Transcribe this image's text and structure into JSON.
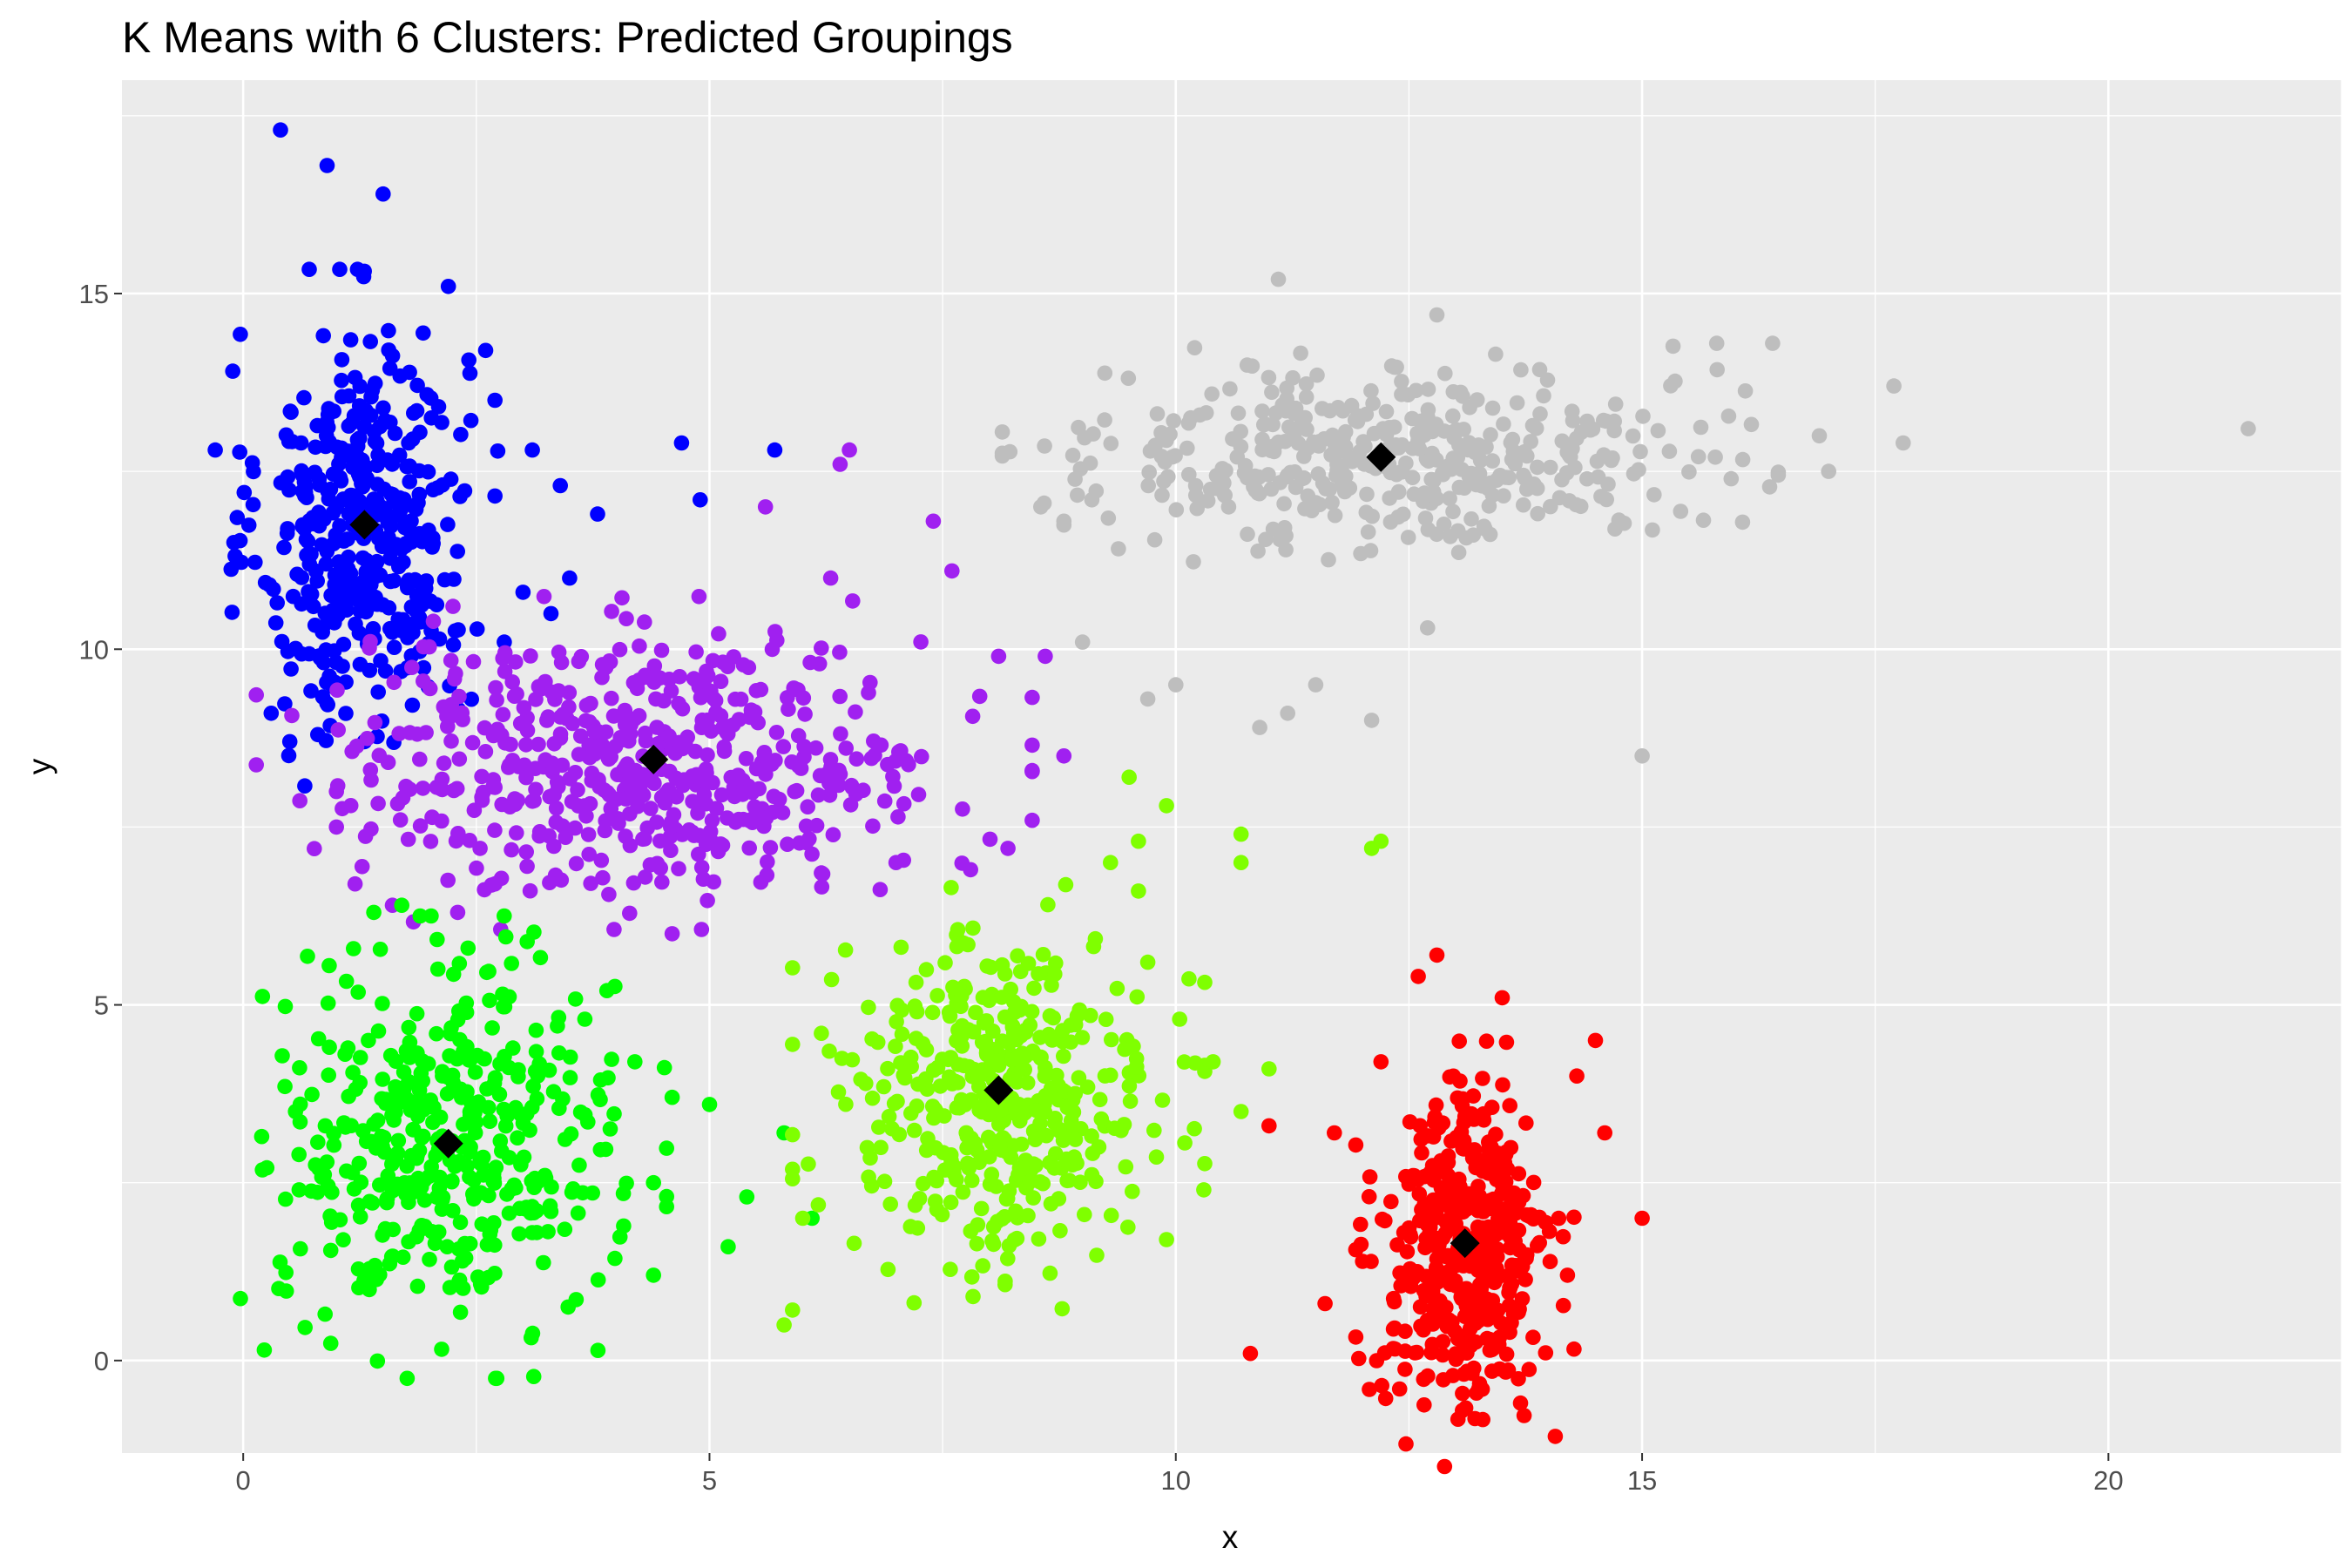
{
  "chart_data": {
    "type": "scatter",
    "title": "K Means with 6 Clusters: Predicted Groupings",
    "xlabel": "x",
    "ylabel": "y",
    "xlim": [
      -1.3,
      22.5
    ],
    "ylim": [
      -1.3,
      18.0
    ],
    "x_ticks": [
      0,
      5,
      10,
      15,
      20
    ],
    "y_ticks": [
      0,
      5,
      10,
      15
    ],
    "grid": true,
    "legend": "none",
    "panel_background": "#ebebeb",
    "grid_color": "#ffffff",
    "clusters": [
      {
        "color": "#0000ff",
        "center": [
          1.3,
          11.7
        ],
        "sd": [
          0.55,
          1.4
        ],
        "count": 420,
        "extra": [
          [
            0.4,
            17.3
          ],
          [
            0.9,
            16.8
          ],
          [
            1.5,
            16.4
          ],
          [
            2.2,
            15.1
          ],
          [
            -0.3,
            12.8
          ],
          [
            -0.1,
            11.5
          ],
          [
            2.6,
            14.2
          ],
          [
            2.7,
            13.5
          ],
          [
            3.1,
            12.8
          ],
          [
            3.4,
            12.3
          ],
          [
            3.8,
            11.9
          ],
          [
            4.7,
            12.9
          ],
          [
            4.9,
            12.1
          ],
          [
            5.7,
            12.8
          ],
          [
            3.5,
            11.0
          ],
          [
            3.0,
            10.8
          ],
          [
            0.3,
            9.1
          ],
          [
            0.5,
            8.7
          ],
          [
            0.8,
            8.8
          ],
          [
            1.3,
            8.7
          ],
          [
            2.8,
            10.1
          ],
          [
            3.3,
            10.5
          ]
        ]
      },
      {
        "color": "#a020f0",
        "center": [
          4.3,
          8.4
        ],
        "sd": [
          1.6,
          0.9
        ],
        "count": 560,
        "extra": [
          [
            6.5,
            12.8
          ],
          [
            6.4,
            12.6
          ],
          [
            7.4,
            11.8
          ],
          [
            7.6,
            11.1
          ],
          [
            5.6,
            12.0
          ],
          [
            6.3,
            11.0
          ],
          [
            8.1,
            9.9
          ],
          [
            8.6,
            9.9
          ],
          [
            8.8,
            8.5
          ],
          [
            8.2,
            7.2
          ],
          [
            7.8,
            6.9
          ],
          [
            7.0,
            7.0
          ],
          [
            4.6,
            6.0
          ],
          [
            1.2,
            6.7
          ],
          [
            1.6,
            6.4
          ],
          [
            2.3,
            6.3
          ],
          [
            2.7,
            6.7
          ],
          [
            1.0,
            8.0
          ],
          [
            1.0,
            7.5
          ]
        ]
      },
      {
        "color": "#00ff00",
        "center": [
          2.2,
          3.0
        ],
        "sd": [
          0.9,
          1.25
        ],
        "count": 420,
        "extra": [
          [
            4.6,
            3.7
          ],
          [
            4.4,
            2.5
          ],
          [
            4.4,
            1.2
          ],
          [
            3.9,
            5.2
          ],
          [
            4.2,
            4.2
          ],
          [
            5.0,
            3.6
          ],
          [
            5.2,
            1.6
          ],
          [
            5.4,
            2.3
          ],
          [
            5.8,
            3.2
          ],
          [
            6.1,
            2.0
          ],
          [
            1.7,
            6.4
          ],
          [
            1.4,
            6.3
          ],
          [
            0.6,
            2.4
          ]
        ]
      },
      {
        "color": "#7fff00",
        "center": [
          8.1,
          3.7
        ],
        "sd": [
          0.85,
          1.15
        ],
        "count": 420,
        "extra": [
          [
            9.5,
            8.2
          ],
          [
            9.6,
            7.3
          ],
          [
            9.3,
            7.0
          ],
          [
            9.9,
            7.8
          ],
          [
            10.7,
            7.4
          ],
          [
            10.7,
            7.0
          ],
          [
            12.1,
            7.2
          ],
          [
            12.2,
            7.3
          ],
          [
            9.6,
            6.6
          ],
          [
            10.4,
            4.2
          ],
          [
            10.7,
            3.5
          ],
          [
            11.0,
            4.1
          ],
          [
            10.3,
            2.4
          ],
          [
            6.2,
            4.6
          ],
          [
            6.0,
            2.0
          ],
          [
            5.8,
            0.5
          ],
          [
            9.9,
            1.7
          ],
          [
            9.7,
            5.6
          ]
        ]
      },
      {
        "color": "#ff0000",
        "center": [
          13.1,
          1.5
        ],
        "sd": [
          0.45,
          1.15
        ],
        "count": 430,
        "extra": [
          [
            12.8,
            5.7
          ],
          [
            12.6,
            5.4
          ],
          [
            13.5,
            5.1
          ],
          [
            14.5,
            4.5
          ],
          [
            14.3,
            4.0
          ],
          [
            14.6,
            3.2
          ],
          [
            12.2,
            4.2
          ],
          [
            11.7,
            3.2
          ],
          [
            11.0,
            3.3
          ],
          [
            15.0,
            2.0
          ],
          [
            10.8,
            0.1
          ],
          [
            11.6,
            0.8
          ],
          [
            14.2,
            1.2
          ],
          [
            12.4,
            -0.4
          ]
        ]
      },
      {
        "color": "#bebebe",
        "center": [
          12.3,
          12.7
        ],
        "sd": [
          1.6,
          0.6
        ],
        "count": 420,
        "extra": [
          [
            11.1,
            15.2
          ],
          [
            12.8,
            14.7
          ],
          [
            15.8,
            14.3
          ],
          [
            16.4,
            14.3
          ],
          [
            17.7,
            13.7
          ],
          [
            17.8,
            12.9
          ],
          [
            21.5,
            13.1
          ],
          [
            16.9,
            13.0
          ],
          [
            17.0,
            12.5
          ],
          [
            12.7,
            10.3
          ],
          [
            10.0,
            9.5
          ],
          [
            11.5,
            9.5
          ],
          [
            10.9,
            8.9
          ],
          [
            11.2,
            9.1
          ],
          [
            12.1,
            9.0
          ],
          [
            15.0,
            8.5
          ],
          [
            9.0,
            10.1
          ],
          [
            9.7,
            9.3
          ],
          [
            9.1,
            12.1
          ],
          [
            8.8,
            11.8
          ]
        ]
      }
    ],
    "centroids": [
      [
        1.3,
        11.75
      ],
      [
        4.4,
        8.45
      ],
      [
        2.2,
        3.05
      ],
      [
        8.1,
        3.8
      ],
      [
        13.1,
        1.65
      ],
      [
        12.2,
        12.7
      ]
    ],
    "centroid_color": "#000000"
  }
}
